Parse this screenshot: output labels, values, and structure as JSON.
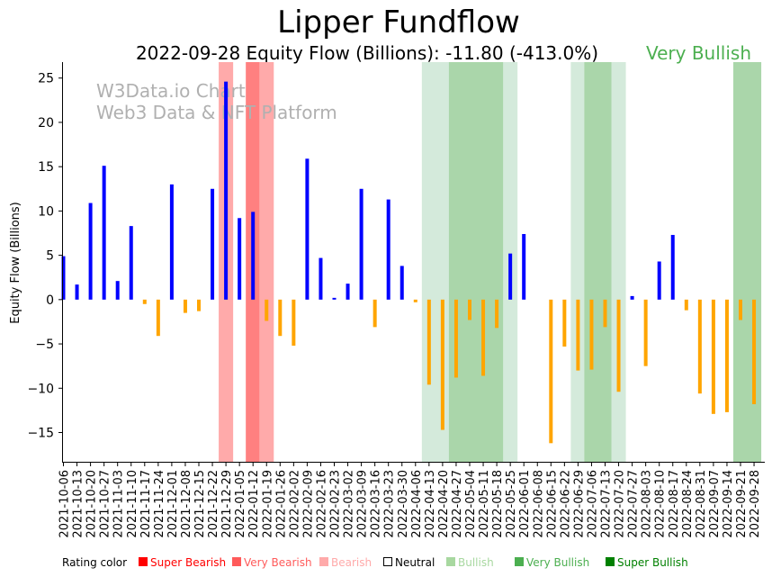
{
  "title": "Lipper Fundflow",
  "subtitle": "2022-09-28 Equity Flow (Billions): -11.80 (-413.0%)",
  "rating_label": "Very Bullish",
  "watermark": [
    "W3Data.io Chart",
    "Web3 Data & NFT Platform"
  ],
  "legend": {
    "label": "Rating color",
    "items": [
      {
        "name": "Super Bearish",
        "color": "#ff0000"
      },
      {
        "name": "Very Bearish",
        "color": "#ff5a5a"
      },
      {
        "name": "Bearish",
        "color": "#ffaaaa"
      },
      {
        "name": "Neutral",
        "color": "#ffffff"
      },
      {
        "name": "Bullish",
        "color": "#a8d8a0"
      },
      {
        "name": "Very Bullish",
        "color": "#4caf50"
      },
      {
        "name": "Super Bullish",
        "color": "#008000"
      }
    ]
  },
  "colors": {
    "positive": "#0000ff",
    "negative": "#ffa500",
    "rating_text": "#4caf50"
  },
  "chart_data": {
    "type": "bar",
    "ylabel": "Equity Flow (Billions)",
    "xlabel": "",
    "ylim": [
      -18.3,
      26.8
    ],
    "yticks": [
      -15,
      -10,
      -5,
      0,
      5,
      10,
      15,
      20,
      25
    ],
    "categories": [
      "2021-10-06",
      "2021-10-13",
      "2021-10-20",
      "2021-10-27",
      "2021-11-03",
      "2021-11-10",
      "2021-11-17",
      "2021-11-24",
      "2021-12-01",
      "2021-12-08",
      "2021-12-15",
      "2021-12-22",
      "2021-12-29",
      "2022-01-05",
      "2022-01-12",
      "2022-01-19",
      "2022-01-26",
      "2022-02-02",
      "2022-02-09",
      "2022-02-16",
      "2022-02-23",
      "2022-03-02",
      "2022-03-09",
      "2022-03-16",
      "2022-03-23",
      "2022-03-30",
      "2022-04-06",
      "2022-04-13",
      "2022-04-20",
      "2022-04-27",
      "2022-05-04",
      "2022-05-11",
      "2022-05-18",
      "2022-05-25",
      "2022-06-01",
      "2022-06-08",
      "2022-06-15",
      "2022-06-22",
      "2022-06-29",
      "2022-07-06",
      "2022-07-13",
      "2022-07-20",
      "2022-07-27",
      "2022-08-03",
      "2022-08-10",
      "2022-08-17",
      "2022-08-24",
      "2022-08-31",
      "2022-09-07",
      "2022-09-14",
      "2022-09-21",
      "2022-09-28"
    ],
    "values": [
      4.9,
      1.7,
      10.9,
      15.1,
      2.1,
      8.3,
      -0.5,
      -4.1,
      13.0,
      -1.5,
      -1.3,
      12.5,
      24.6,
      9.2,
      9.9,
      -2.4,
      -4.1,
      -5.2,
      15.9,
      4.7,
      0.2,
      1.8,
      12.5,
      -3.1,
      11.3,
      3.8,
      -0.3,
      -9.6,
      -14.7,
      -8.8,
      -2.3,
      -8.6,
      -3.2,
      5.2,
      7.4,
      0.0,
      -16.2,
      -5.3,
      -8.0,
      -7.9,
      -3.1,
      -10.4,
      0.4,
      -7.5,
      4.3,
      7.3,
      -1.2,
      -10.6,
      -12.9,
      -12.7,
      -2.3,
      -11.8
    ],
    "rating_bands": [
      {
        "start": "2021-12-29",
        "end": "2021-12-29",
        "rating": "Bearish",
        "color": "#ffaaaa"
      },
      {
        "start": "2022-01-12",
        "end": "2022-01-12",
        "rating": "Very Bearish",
        "color": "#ff8080"
      },
      {
        "start": "2022-01-19",
        "end": "2022-01-19",
        "rating": "Bearish",
        "color": "#ffaaaa"
      },
      {
        "start": "2022-04-13",
        "end": "2022-04-27",
        "rating": "Bullish",
        "color": "#d4eadb"
      },
      {
        "start": "2022-04-27",
        "end": "2022-05-18",
        "rating": "Very Bullish",
        "color": "#aad6aa"
      },
      {
        "start": "2022-05-25",
        "end": "2022-05-25",
        "rating": "Bullish",
        "color": "#d4eadb"
      },
      {
        "start": "2022-06-29",
        "end": "2022-06-29",
        "rating": "Bullish",
        "color": "#d4eadb"
      },
      {
        "start": "2022-07-06",
        "end": "2022-07-13",
        "rating": "Very Bullish",
        "color": "#aad6aa"
      },
      {
        "start": "2022-07-20",
        "end": "2022-07-20",
        "rating": "Bullish",
        "color": "#d4eadb"
      },
      {
        "start": "2022-09-21",
        "end": "2022-09-28",
        "rating": "Very Bullish",
        "color": "#aad6aa"
      }
    ]
  }
}
